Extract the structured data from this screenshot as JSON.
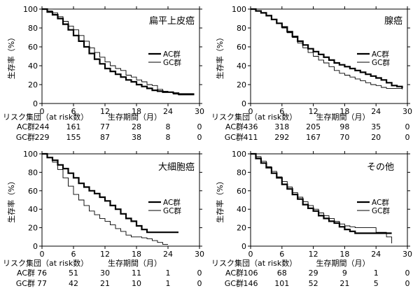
{
  "chart_data": [
    {
      "type": "line",
      "title": "扁平上皮癌",
      "xlabel": "生存期間（月）",
      "ylabel": "生存率（%）",
      "xlim": [
        0,
        30
      ],
      "ylim": [
        0,
        100
      ],
      "xticks": [
        0,
        6,
        12,
        18,
        24,
        30
      ],
      "yticks": [
        0,
        20,
        40,
        60,
        80,
        100
      ],
      "legend": "right",
      "risk_header": "リスク集団（at risk数）",
      "series": [
        {
          "name": "AC群",
          "color": "#000000",
          "width": 2.2,
          "points": [
            [
              0,
              100
            ],
            [
              1,
              97
            ],
            [
              2,
              94
            ],
            [
              3,
              90
            ],
            [
              4,
              84
            ],
            [
              5,
              78
            ],
            [
              6,
              72
            ],
            [
              7,
              66
            ],
            [
              8,
              60
            ],
            [
              9,
              53
            ],
            [
              10,
              47
            ],
            [
              11,
              42
            ],
            [
              12,
              37
            ],
            [
              13,
              34
            ],
            [
              14,
              31
            ],
            [
              15,
              28
            ],
            [
              16,
              25
            ],
            [
              17,
              23
            ],
            [
              18,
              20
            ],
            [
              19,
              18
            ],
            [
              20,
              16
            ],
            [
              21,
              14
            ],
            [
              22,
              13
            ],
            [
              23,
              12
            ],
            [
              24,
              12
            ],
            [
              25,
              11
            ],
            [
              26,
              10
            ],
            [
              27,
              10
            ],
            [
              28,
              10
            ],
            [
              29,
              10
            ]
          ]
        },
        {
          "name": "GC群",
          "color": "#000000",
          "width": 0.9,
          "points": [
            [
              0,
              100
            ],
            [
              1,
              98
            ],
            [
              2,
              96
            ],
            [
              3,
              92
            ],
            [
              4,
              87
            ],
            [
              5,
              82
            ],
            [
              6,
              78
            ],
            [
              7,
              72
            ],
            [
              8,
              66
            ],
            [
              9,
              59
            ],
            [
              10,
              54
            ],
            [
              11,
              49
            ],
            [
              12,
              44
            ],
            [
              13,
              40
            ],
            [
              14,
              37
            ],
            [
              15,
              35
            ],
            [
              16,
              30
            ],
            [
              17,
              28
            ],
            [
              18,
              25
            ],
            [
              19,
              23
            ],
            [
              20,
              20
            ],
            [
              21,
              19
            ],
            [
              22,
              15
            ],
            [
              23,
              13
            ],
            [
              24,
              12
            ],
            [
              25,
              10
            ],
            [
              26,
              9
            ],
            [
              27,
              9
            ],
            [
              28,
              9
            ],
            [
              29,
              9
            ]
          ]
        }
      ],
      "risk_table": [
        {
          "label": "AC群",
          "values": [
            "244",
            "161",
            "77",
            "28",
            "8",
            "0"
          ]
        },
        {
          "label": "GC群",
          "values": [
            "229",
            "155",
            "87",
            "38",
            "8",
            "0"
          ]
        }
      ]
    },
    {
      "type": "line",
      "title": "腺癌",
      "xlabel": "生存期間（月）",
      "ylabel": "生存率（%）",
      "xlim": [
        0,
        30
      ],
      "ylim": [
        0,
        100
      ],
      "xticks": [
        0,
        6,
        12,
        18,
        24,
        30
      ],
      "yticks": [
        0,
        20,
        40,
        60,
        80,
        100
      ],
      "legend": "right",
      "risk_header": "リスク集団（at risk数）",
      "series": [
        {
          "name": "AC群",
          "color": "#000000",
          "width": 2.2,
          "points": [
            [
              0,
              100
            ],
            [
              1,
              98
            ],
            [
              2,
              96
            ],
            [
              3,
              93
            ],
            [
              4,
              89
            ],
            [
              5,
              85
            ],
            [
              6,
              81
            ],
            [
              7,
              76
            ],
            [
              8,
              71
            ],
            [
              9,
              66
            ],
            [
              10,
              62
            ],
            [
              11,
              58
            ],
            [
              12,
              55
            ],
            [
              13,
              52
            ],
            [
              14,
              49
            ],
            [
              15,
              46
            ],
            [
              16,
              43
            ],
            [
              17,
              41
            ],
            [
              18,
              39
            ],
            [
              19,
              37
            ],
            [
              20,
              35
            ],
            [
              21,
              33
            ],
            [
              22,
              31
            ],
            [
              23,
              29
            ],
            [
              24,
              27
            ],
            [
              25,
              25
            ],
            [
              26,
              22
            ],
            [
              27,
              19
            ],
            [
              28,
              18
            ],
            [
              29,
              16
            ]
          ]
        },
        {
          "name": "GC群",
          "color": "#000000",
          "width": 0.9,
          "points": [
            [
              0,
              100
            ],
            [
              1,
              98
            ],
            [
              2,
              96
            ],
            [
              3,
              93
            ],
            [
              4,
              89
            ],
            [
              5,
              85
            ],
            [
              6,
              80
            ],
            [
              7,
              75
            ],
            [
              8,
              70
            ],
            [
              9,
              64
            ],
            [
              10,
              59
            ],
            [
              11,
              54
            ],
            [
              12,
              50
            ],
            [
              13,
              46
            ],
            [
              14,
              43
            ],
            [
              15,
              39
            ],
            [
              16,
              35
            ],
            [
              17,
              32
            ],
            [
              18,
              30
            ],
            [
              19,
              28
            ],
            [
              20,
              26
            ],
            [
              21,
              24
            ],
            [
              22,
              22
            ],
            [
              23,
              20
            ],
            [
              24,
              19
            ],
            [
              25,
              17
            ],
            [
              26,
              16
            ],
            [
              27,
              16
            ],
            [
              28,
              16
            ],
            [
              29,
              15
            ]
          ]
        }
      ],
      "risk_table": [
        {
          "label": "AC群",
          "values": [
            "436",
            "318",
            "205",
            "98",
            "35",
            "0"
          ]
        },
        {
          "label": "GC群",
          "values": [
            "411",
            "292",
            "167",
            "70",
            "20",
            "0"
          ]
        }
      ]
    },
    {
      "type": "line",
      "title": "大細胞癌",
      "xlabel": "生存期間（月）",
      "ylabel": "生存率（%）",
      "xlim": [
        0,
        30
      ],
      "ylim": [
        0,
        100
      ],
      "xticks": [
        0,
        6,
        12,
        18,
        24,
        30
      ],
      "yticks": [
        0,
        20,
        40,
        60,
        80,
        100
      ],
      "legend": "right",
      "risk_header": "リスク集団（at risk数）",
      "series": [
        {
          "name": "AC群",
          "color": "#000000",
          "width": 2.2,
          "points": [
            [
              0,
              100
            ],
            [
              1,
              96
            ],
            [
              2,
              93
            ],
            [
              3,
              88
            ],
            [
              4,
              84
            ],
            [
              5,
              79
            ],
            [
              6,
              74
            ],
            [
              7,
              68
            ],
            [
              8,
              64
            ],
            [
              9,
              60
            ],
            [
              10,
              57
            ],
            [
              11,
              53
            ],
            [
              12,
              49
            ],
            [
              13,
              44
            ],
            [
              14,
              40
            ],
            [
              15,
              35
            ],
            [
              16,
              30
            ],
            [
              17,
              27
            ],
            [
              18,
              22
            ],
            [
              19,
              18
            ],
            [
              20,
              15
            ],
            [
              21,
              15
            ],
            [
              22,
              15
            ],
            [
              23,
              15
            ],
            [
              24,
              15
            ],
            [
              25,
              15
            ],
            [
              26,
              15
            ]
          ]
        },
        {
          "name": "GC群",
          "color": "#000000",
          "width": 0.9,
          "points": [
            [
              0,
              100
            ],
            [
              1,
              96
            ],
            [
              2,
              91
            ],
            [
              3,
              83
            ],
            [
              4,
              74
            ],
            [
              5,
              65
            ],
            [
              6,
              56
            ],
            [
              7,
              50
            ],
            [
              8,
              44
            ],
            [
              9,
              38
            ],
            [
              10,
              34
            ],
            [
              11,
              30
            ],
            [
              12,
              27
            ],
            [
              13,
              23
            ],
            [
              14,
              19
            ],
            [
              15,
              16
            ],
            [
              16,
              12
            ],
            [
              17,
              10
            ],
            [
              18,
              10
            ],
            [
              19,
              9
            ],
            [
              20,
              8
            ],
            [
              21,
              6
            ],
            [
              22,
              4
            ],
            [
              23,
              2
            ],
            [
              24,
              2
            ]
          ]
        }
      ],
      "risk_table": [
        {
          "label": "AC群",
          "values": [
            "76",
            "51",
            "30",
            "11",
            "1",
            "0"
          ]
        },
        {
          "label": "GC群",
          "values": [
            "77",
            "42",
            "21",
            "10",
            "1",
            "0"
          ]
        }
      ]
    },
    {
      "type": "line",
      "title": "その他",
      "xlabel": "生存期間（月）",
      "ylabel": "生存率（%）",
      "xlim": [
        0,
        30
      ],
      "ylim": [
        0,
        100
      ],
      "xticks": [
        0,
        6,
        12,
        18,
        24,
        30
      ],
      "yticks": [
        0,
        20,
        40,
        60,
        80,
        100
      ],
      "legend": "right",
      "risk_header": "リスク集団（at risk数）",
      "series": [
        {
          "name": "AC群",
          "color": "#000000",
          "width": 2.2,
          "points": [
            [
              0,
              100
            ],
            [
              1,
              95
            ],
            [
              2,
              90
            ],
            [
              3,
              85
            ],
            [
              4,
              79
            ],
            [
              5,
              74
            ],
            [
              6,
              67
            ],
            [
              7,
              62
            ],
            [
              8,
              56
            ],
            [
              9,
              51
            ],
            [
              10,
              45
            ],
            [
              11,
              41
            ],
            [
              12,
              38
            ],
            [
              13,
              33
            ],
            [
              14,
              30
            ],
            [
              15,
              27
            ],
            [
              16,
              25
            ],
            [
              17,
              21
            ],
            [
              18,
              18
            ],
            [
              19,
              16
            ],
            [
              20,
              14
            ],
            [
              21,
              14
            ],
            [
              22,
              14
            ],
            [
              23,
              14
            ],
            [
              24,
              14
            ],
            [
              25,
              14
            ],
            [
              26,
              14
            ],
            [
              27,
              14
            ]
          ]
        },
        {
          "name": "GC群",
          "color": "#000000",
          "width": 0.9,
          "points": [
            [
              0,
              100
            ],
            [
              1,
              97
            ],
            [
              2,
              92
            ],
            [
              3,
              86
            ],
            [
              4,
              81
            ],
            [
              5,
              75
            ],
            [
              6,
              70
            ],
            [
              7,
              64
            ],
            [
              8,
              58
            ],
            [
              9,
              53
            ],
            [
              10,
              48
            ],
            [
              11,
              44
            ],
            [
              12,
              40
            ],
            [
              13,
              36
            ],
            [
              14,
              33
            ],
            [
              15,
              30
            ],
            [
              16,
              27
            ],
            [
              17,
              24
            ],
            [
              18,
              22
            ],
            [
              19,
              21
            ],
            [
              20,
              20
            ],
            [
              21,
              20
            ],
            [
              22,
              20
            ],
            [
              23,
              20
            ],
            [
              24,
              15
            ],
            [
              25,
              15
            ],
            [
              26,
              10
            ],
            [
              27,
              3
            ]
          ]
        }
      ],
      "risk_table": [
        {
          "label": "AC群",
          "values": [
            "106",
            "68",
            "29",
            "9",
            "1",
            "0"
          ]
        },
        {
          "label": "GC群",
          "values": [
            "146",
            "101",
            "52",
            "21",
            "5",
            "0"
          ]
        }
      ]
    }
  ]
}
